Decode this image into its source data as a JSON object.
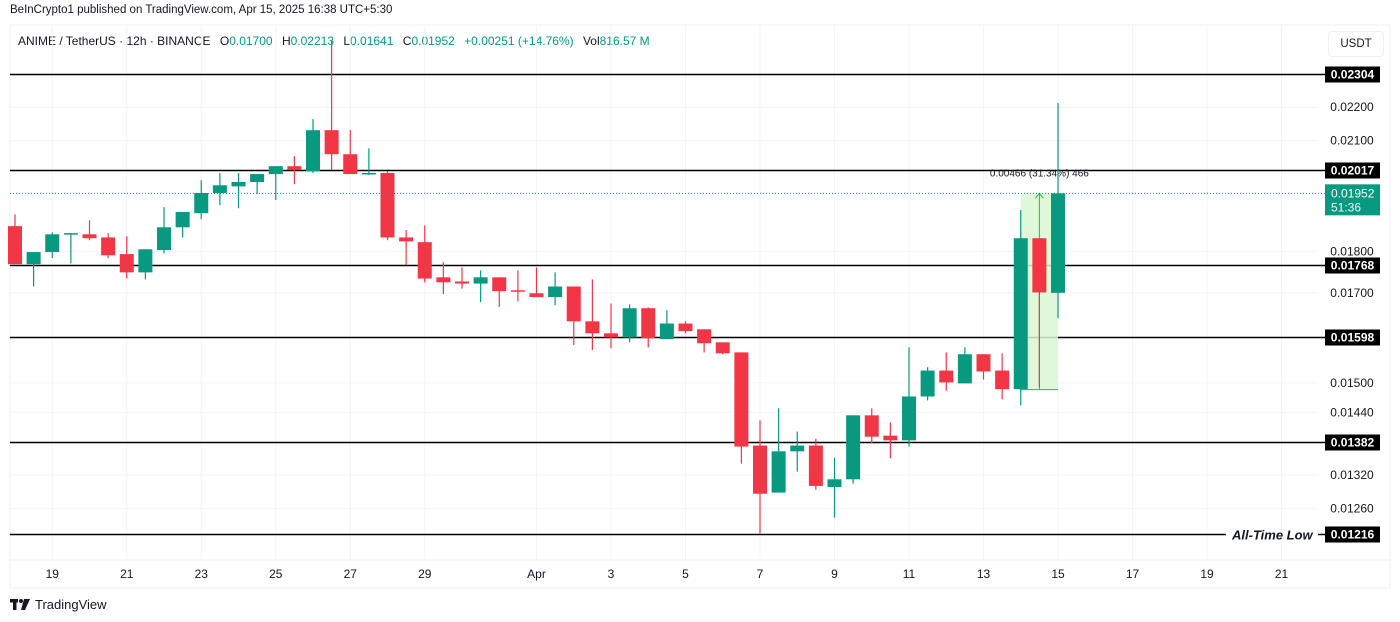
{
  "header": {
    "published": "BeInCrypto1 published on TradingView.com, Apr 15, 2025 16:38 UTC+5:30",
    "symbol": "ANIME / TetherUS · 12h · BINANCE",
    "o_label": "O",
    "o": "0.01700",
    "h_label": "H",
    "h": "0.02213",
    "l_label": "L",
    "l": "0.01641",
    "c_label": "C",
    "c": "0.01952",
    "change": "+0.00251 (+14.76%)",
    "vol_label": "Vol",
    "vol": "816.57 M"
  },
  "currency_button": "USDT",
  "footer": {
    "brand": "TradingView"
  },
  "colors": {
    "up": "#089981",
    "down": "#F23645",
    "level": "#000000",
    "measure_fill": "#d9f7d4",
    "measure_line": "#22c32e"
  },
  "chart_data": {
    "type": "candlestick",
    "interval": "12h",
    "y_scale": "log",
    "grid": true,
    "ylim": [
      0.01216,
      0.02304
    ],
    "y_ticks": [
      "0.02200",
      "0.02100",
      "0.01800",
      "0.01700",
      "0.01500",
      "0.01440",
      "0.01320",
      "0.01260"
    ],
    "x_ticks": [
      {
        "label": "19",
        "date": "2025-03-19"
      },
      {
        "label": "21",
        "date": "2025-03-21"
      },
      {
        "label": "23",
        "date": "2025-03-23"
      },
      {
        "label": "25",
        "date": "2025-03-25"
      },
      {
        "label": "27",
        "date": "2025-03-27"
      },
      {
        "label": "29",
        "date": "2025-03-29"
      },
      {
        "label": "Apr",
        "date": "2025-04-01"
      },
      {
        "label": "3",
        "date": "2025-04-03"
      },
      {
        "label": "5",
        "date": "2025-04-05"
      },
      {
        "label": "7",
        "date": "2025-04-07"
      },
      {
        "label": "9",
        "date": "2025-04-09"
      },
      {
        "label": "11",
        "date": "2025-04-11"
      },
      {
        "label": "13",
        "date": "2025-04-13"
      },
      {
        "label": "15",
        "date": "2025-04-15"
      },
      {
        "label": "17",
        "date": "2025-04-17"
      },
      {
        "label": "19",
        "date": "2025-04-19"
      },
      {
        "label": "21",
        "date": "2025-04-21"
      }
    ],
    "start": "2025-03-18 00:00",
    "candles_ohlc": [
      [
        0.01865,
        0.01896,
        0.01769,
        0.01769
      ],
      [
        0.01769,
        0.01799,
        0.01715,
        0.01799
      ],
      [
        0.01799,
        0.01849,
        0.01784,
        0.01844
      ],
      [
        0.01844,
        0.01847,
        0.01771,
        0.01847
      ],
      [
        0.01844,
        0.0188,
        0.01829,
        0.01834
      ],
      [
        0.01836,
        0.01847,
        0.01784,
        0.01791
      ],
      [
        0.01794,
        0.01839,
        0.01734,
        0.01749
      ],
      [
        0.01749,
        0.01806,
        0.01732,
        0.01806
      ],
      [
        0.01804,
        0.01915,
        0.01796,
        0.01862
      ],
      [
        0.01862,
        0.01902,
        0.01836,
        0.01902
      ],
      [
        0.01899,
        0.01988,
        0.01883,
        0.01953
      ],
      [
        0.01953,
        0.02008,
        0.0192,
        0.01974
      ],
      [
        0.01971,
        0.02008,
        0.01912,
        0.01983
      ],
      [
        0.01983,
        0.02005,
        0.0195,
        0.02005
      ],
      [
        0.02005,
        0.02027,
        0.01934,
        0.02027
      ],
      [
        0.02027,
        0.02055,
        0.01977,
        0.02016
      ],
      [
        0.02013,
        0.02164,
        0.02008,
        0.02131
      ],
      [
        0.02131,
        0.02415,
        0.02016,
        0.02061
      ],
      [
        0.02061,
        0.02131,
        0.02005,
        0.02005
      ],
      [
        0.02005,
        0.02078,
        0.02002,
        0.02008
      ],
      [
        0.02008,
        0.02013,
        0.01829,
        0.01836
      ],
      [
        0.01836,
        0.01855,
        0.01767,
        0.01826
      ],
      [
        0.01824,
        0.01867,
        0.01725,
        0.01734
      ],
      [
        0.01737,
        0.01774,
        0.01697,
        0.01725
      ],
      [
        0.01727,
        0.01761,
        0.0171,
        0.01722
      ],
      [
        0.01722,
        0.01754,
        0.01678,
        0.01737
      ],
      [
        0.01737,
        0.01737,
        0.01667,
        0.01704
      ],
      [
        0.01706,
        0.01754,
        0.0168,
        0.01704
      ],
      [
        0.01699,
        0.01761,
        0.0169,
        0.0169
      ],
      [
        0.0169,
        0.01749,
        0.01671,
        0.01715
      ],
      [
        0.01715,
        0.01715,
        0.01581,
        0.01634
      ],
      [
        0.01634,
        0.01732,
        0.0157,
        0.01607
      ],
      [
        0.01607,
        0.01675,
        0.01574,
        0.01598
      ],
      [
        0.01598,
        0.01673,
        0.01587,
        0.01664
      ],
      [
        0.01664,
        0.01666,
        0.01576,
        0.01596
      ],
      [
        0.01594,
        0.01659,
        0.01594,
        0.01629
      ],
      [
        0.01629,
        0.01634,
        0.01607,
        0.01612
      ],
      [
        0.01616,
        0.01616,
        0.01565,
        0.01585
      ],
      [
        0.01587,
        0.01587,
        0.01561,
        0.01563
      ],
      [
        0.01565,
        0.01565,
        0.01341,
        0.01373
      ],
      [
        0.01375,
        0.01424,
        0.01216,
        0.01286
      ],
      [
        0.01288,
        0.01448,
        0.01288,
        0.01364
      ],
      [
        0.01364,
        0.01402,
        0.01326,
        0.01375
      ],
      [
        0.01375,
        0.01388,
        0.01293,
        0.013
      ],
      [
        0.01298,
        0.01352,
        0.01244,
        0.01312
      ],
      [
        0.01312,
        0.01434,
        0.01304,
        0.01434
      ],
      [
        0.01434,
        0.01448,
        0.01379,
        0.01392
      ],
      [
        0.01394,
        0.0142,
        0.01351,
        0.01385
      ],
      [
        0.01385,
        0.01576,
        0.01373,
        0.01472
      ],
      [
        0.01472,
        0.01533,
        0.01464,
        0.01526
      ],
      [
        0.01526,
        0.01565,
        0.01484,
        0.01501
      ],
      [
        0.01499,
        0.01576,
        0.01499,
        0.01561
      ],
      [
        0.01561,
        0.01561,
        0.01507,
        0.01524
      ],
      [
        0.01526,
        0.01563,
        0.01466,
        0.01487
      ],
      [
        0.01487,
        0.01907,
        0.01454,
        0.01834
      ],
      [
        0.01834,
        0.01834,
        0.01491,
        0.01701
      ],
      [
        0.017,
        0.02213,
        0.01641,
        0.01952
      ]
    ],
    "levels": [
      {
        "price": 0.02304,
        "label": "0.02304"
      },
      {
        "price": 0.02017,
        "label": "0.02017"
      },
      {
        "price": 0.01768,
        "label": "0.01768"
      },
      {
        "price": 0.01598,
        "label": "0.01598"
      },
      {
        "price": 0.01382,
        "label": "0.01382"
      },
      {
        "price": 0.01216,
        "label": "0.01216",
        "annotation": "All-Time Low"
      }
    ],
    "last_price": {
      "price": 0.01952,
      "label": "0.01952",
      "countdown": "51:36"
    },
    "measure": {
      "from": 0.01486,
      "to": 0.01952,
      "start_candle": 54,
      "end_candle": 56,
      "label": "0.00466 (31.34%) 466"
    }
  }
}
